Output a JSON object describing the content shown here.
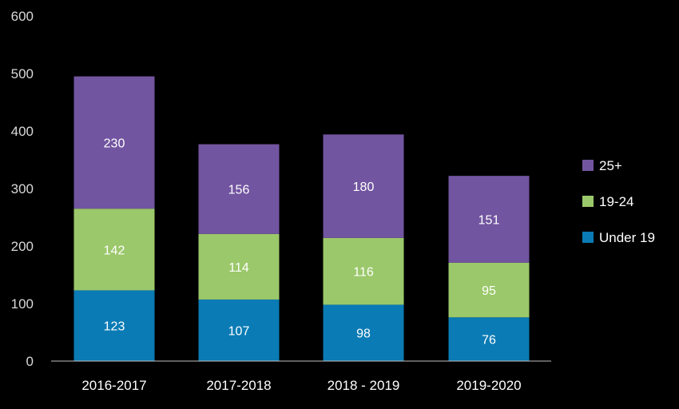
{
  "chart_data": {
    "type": "bar",
    "stacked": true,
    "categories": [
      "2016-2017",
      "2017-2018",
      "2018 - 2019",
      "2019-2020"
    ],
    "series": [
      {
        "name": "Under 19",
        "color": "#0a7bb5",
        "values": [
          123,
          107,
          98,
          76
        ]
      },
      {
        "name": "19-24",
        "color": "#9bc86a",
        "values": [
          142,
          114,
          116,
          95
        ]
      },
      {
        "name": "25+",
        "color": "#7255a0",
        "values": [
          230,
          156,
          180,
          151
        ]
      }
    ],
    "legend_order": [
      "25+",
      "19-24",
      "Under 19"
    ],
    "title": "",
    "xlabel": "",
    "ylabel": "",
    "ylim": [
      0,
      600
    ],
    "yticks": [
      0,
      100,
      200,
      300,
      400,
      500,
      600
    ],
    "grid": false,
    "legend_position": "right",
    "background": "#000000"
  }
}
